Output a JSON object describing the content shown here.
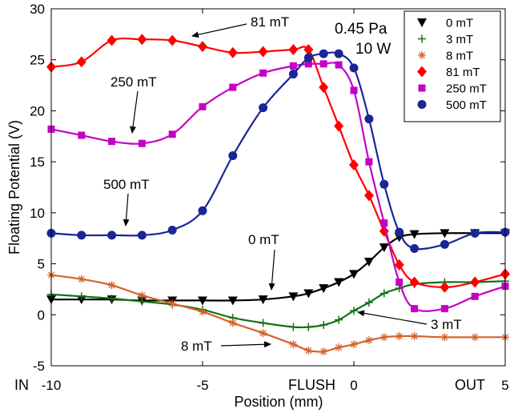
{
  "chart_data": {
    "type": "line",
    "title": "",
    "xlabel": "Position (mm)",
    "ylabel": "Floating Potential (V)",
    "xlim": [
      -10,
      5
    ],
    "ylim": [
      -5,
      30
    ],
    "xticks": [
      -10,
      -5,
      0,
      5
    ],
    "yticks": [
      -5,
      0,
      5,
      10,
      15,
      20,
      25,
      30
    ],
    "xtick_labels": [
      "-10",
      "-5",
      "0",
      "5"
    ],
    "ytick_labels": [
      "-5",
      "0",
      "5",
      "10",
      "15",
      "20",
      "25",
      "30"
    ],
    "axis_words": {
      "in": "IN",
      "flush": "FLUSH",
      "out": "OUT"
    },
    "conditions": [
      "0.45 Pa",
      "10 W"
    ],
    "legend_position": "top-right",
    "series": [
      {
        "name": "0 mT",
        "color": "#000000",
        "marker": "triangle-down",
        "x": [
          -10,
          -9,
          -8,
          -7,
          -6,
          -5,
          -4,
          -3,
          -2,
          -1.5,
          -1,
          -0.5,
          0,
          0.5,
          1,
          1.5,
          2,
          3,
          4,
          5
        ],
        "y": [
          1.5,
          1.5,
          1.5,
          1.4,
          1.4,
          1.4,
          1.4,
          1.5,
          1.8,
          2.1,
          2.6,
          3.2,
          4.0,
          5.2,
          6.6,
          7.6,
          7.9,
          8.0,
          8.0,
          8.0
        ]
      },
      {
        "name": "3 mT",
        "color": "#127212",
        "marker": "plus",
        "x": [
          -10,
          -9,
          -8,
          -7,
          -6,
          -5,
          -4,
          -3,
          -2,
          -1.5,
          -1,
          -0.5,
          0,
          0.5,
          1,
          1.5,
          2,
          3,
          4,
          5
        ],
        "y": [
          2.0,
          1.8,
          1.6,
          1.3,
          1.0,
          0.5,
          -0.3,
          -0.8,
          -1.2,
          -1.2,
          -1.0,
          -0.5,
          0.4,
          1.2,
          2.1,
          2.6,
          3.0,
          3.2,
          3.2,
          3.3
        ]
      },
      {
        "name": "8 mT",
        "color": "#d4622a",
        "marker": "asterisk",
        "x": [
          -10,
          -9,
          -8,
          -7,
          -6,
          -5,
          -4,
          -3,
          -2,
          -1.5,
          -1,
          -0.5,
          0,
          0.5,
          1,
          1.5,
          2,
          3,
          4,
          5
        ],
        "y": [
          3.9,
          3.5,
          2.9,
          1.9,
          1.1,
          0.3,
          -0.8,
          -1.8,
          -2.9,
          -3.5,
          -3.6,
          -3.2,
          -2.9,
          -2.5,
          -2.2,
          -2.1,
          -2.1,
          -2.2,
          -2.2,
          -2.2
        ]
      },
      {
        "name": "81 mT",
        "color": "#ff0000",
        "marker": "diamond",
        "x": [
          -10,
          -9,
          -8,
          -7,
          -6,
          -5,
          -4,
          -3,
          -2,
          -1.5,
          -1,
          -0.5,
          0,
          0.5,
          1,
          1.5,
          2,
          3,
          4,
          5
        ],
        "y": [
          24.3,
          24.8,
          26.9,
          27.0,
          26.9,
          26.3,
          25.7,
          25.8,
          26.0,
          26.0,
          22.3,
          18.5,
          14.7,
          11.7,
          8.2,
          4.9,
          3.2,
          2.7,
          3.2,
          4.0
        ]
      },
      {
        "name": "250 mT",
        "color": "#c400c4",
        "marker": "square",
        "x": [
          -10,
          -9,
          -8,
          -7,
          -6,
          -5,
          -4,
          -3,
          -2,
          -1.5,
          -1,
          -0.5,
          0,
          0.5,
          1,
          1.5,
          2,
          3,
          4,
          5
        ],
        "y": [
          18.2,
          17.6,
          17.0,
          16.8,
          17.7,
          20.4,
          22.3,
          23.7,
          24.4,
          24.6,
          24.6,
          24.5,
          22.0,
          15.0,
          9.0,
          3.2,
          0.6,
          0.6,
          1.8,
          2.8
        ]
      },
      {
        "name": "500 mT",
        "color": "#1a2696",
        "marker": "circle",
        "x": [
          -10,
          -9,
          -8,
          -7,
          -6,
          -5,
          -4,
          -3,
          -2,
          -1.5,
          -1,
          -0.5,
          0,
          0.5,
          1,
          1.5,
          2,
          3,
          4,
          5
        ],
        "y": [
          8.0,
          7.8,
          7.8,
          7.8,
          8.3,
          10.2,
          15.6,
          20.3,
          23.6,
          25.2,
          25.6,
          25.6,
          24.2,
          19.2,
          12.8,
          8.1,
          6.5,
          6.9,
          8.0,
          8.1
        ]
      }
    ],
    "annotations": [
      {
        "text": "81 mT"
      },
      {
        "text": "250 mT"
      },
      {
        "text": "500 mT"
      },
      {
        "text": "0 mT"
      },
      {
        "text": "3 mT"
      },
      {
        "text": "8 mT"
      }
    ]
  }
}
